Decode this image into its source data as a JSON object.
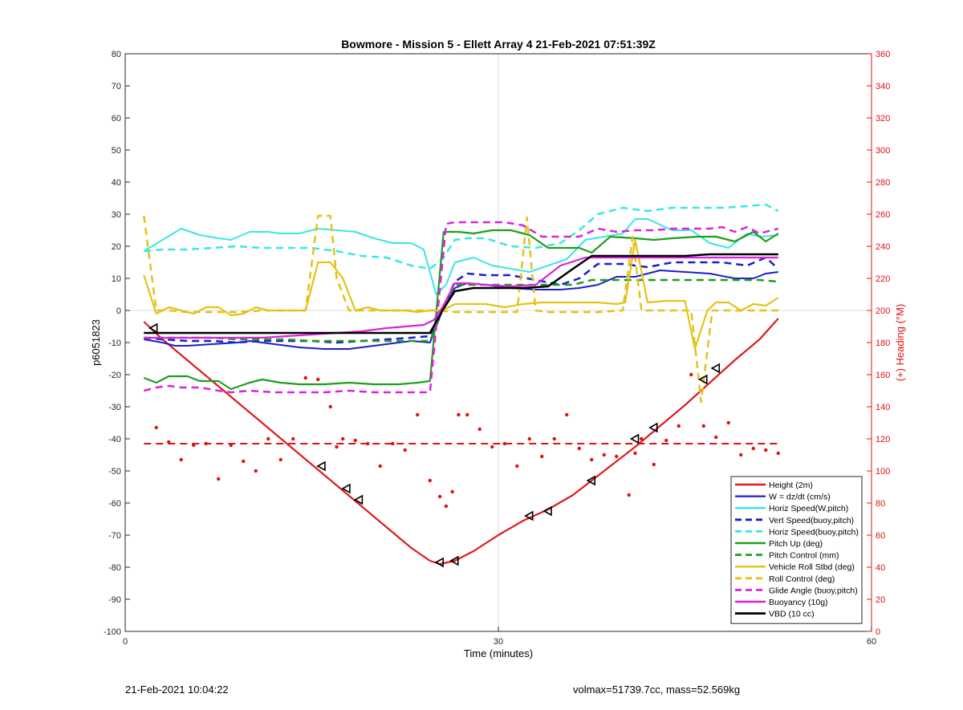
{
  "footer": {
    "date": "21-Feb-2021 10:04:22",
    "info": "volmax=51739.7cc, mass=52.569kg"
  },
  "colors": {
    "height": "#dd1c1c",
    "w": "#1a1fc8",
    "horiz": "#3ae6e6",
    "pitch": "#1e9e1e",
    "roll": "#e3c319",
    "glide": "#e020e0",
    "vbd": "#000000",
    "heading": "#e01010"
  },
  "chart_data": {
    "type": "line",
    "title": "Bowmore - Mission 5 - Ellett Array 4 21-Feb-2021 07:51:39Z",
    "xlabel": "Time (minutes)",
    "ylabel": "p6051823",
    "y2label": "(+) Heading (°M)",
    "xlim": [
      0,
      60
    ],
    "ylim": [
      -100,
      80
    ],
    "y2lim": [
      0,
      360
    ],
    "xticks": [
      0,
      30,
      60
    ],
    "yticks": [
      -100,
      -90,
      -80,
      -70,
      -60,
      -50,
      -40,
      -30,
      -20,
      -10,
      0,
      10,
      20,
      30,
      40,
      50,
      60,
      70,
      80
    ],
    "y2ticks": [
      0,
      20,
      40,
      60,
      80,
      100,
      120,
      140,
      160,
      180,
      200,
      220,
      240,
      260,
      280,
      300,
      320,
      340,
      360
    ],
    "grid_x": [
      30
    ],
    "grid_y": [
      0
    ],
    "legend_position": "bottom-right",
    "series": [
      {
        "name": "Height (2m)",
        "key": "height",
        "style": "solid",
        "width": 2.2,
        "x": [
          1.5,
          3,
          5,
          7,
          9,
          11,
          13,
          15,
          17,
          19,
          21,
          23,
          24.5,
          25.3,
          26.5,
          28,
          30,
          32,
          34,
          36,
          37.5,
          39,
          41,
          43,
          45,
          47,
          49,
          51,
          52.5
        ],
        "y": [
          -3.5,
          -9,
          -15.5,
          -22,
          -28.5,
          -35,
          -41.5,
          -48,
          -54.5,
          -61,
          -67.5,
          -74,
          -78,
          -79,
          -78,
          -75,
          -70,
          -65.5,
          -62,
          -57.5,
          -53,
          -48.5,
          -42.5,
          -36,
          -29.5,
          -22.5,
          -15.5,
          -9,
          -2.5
        ]
      },
      {
        "name": "W = dz/dt (cm/s)",
        "key": "w",
        "style": "solid",
        "width": 2,
        "x": [
          1.5,
          3,
          4,
          5,
          7,
          9,
          10,
          12,
          14,
          16,
          18,
          20,
          22,
          23,
          24.5,
          25.5,
          26.5,
          27.5,
          29,
          31,
          33,
          35,
          36.5,
          38,
          39.5,
          41,
          43,
          45,
          47,
          49,
          50.5,
          51.5,
          52.5
        ],
        "y": [
          -9,
          -10,
          -11,
          -11,
          -10.5,
          -10,
          -9.5,
          -10.5,
          -11.5,
          -12,
          -12,
          -11,
          -10,
          -9.5,
          -10,
          0,
          7,
          8.5,
          8,
          7,
          6.5,
          6.5,
          7,
          8,
          10.5,
          10.5,
          12.5,
          12,
          11.5,
          10,
          10,
          11.5,
          12
        ]
      },
      {
        "name": "Horiz Speed(W,pitch)",
        "key": "horiz",
        "style": "solid",
        "width": 2,
        "x": [
          1.5,
          3,
          4.5,
          6,
          7.5,
          8.5,
          10,
          11.5,
          12.5,
          14,
          15.5,
          17,
          18.5,
          20,
          21.5,
          23,
          24,
          25,
          25.8,
          26.5,
          28,
          29.5,
          31,
          32.5,
          34,
          35.5,
          37,
          38.5,
          40,
          41,
          42,
          44,
          45.5,
          47,
          48.5,
          50,
          51,
          52.5
        ],
        "y": [
          18.5,
          22,
          25.5,
          23.5,
          22.5,
          22,
          24.5,
          24.5,
          24,
          24,
          25.5,
          25,
          24.5,
          22.5,
          21,
          21,
          19,
          5,
          8,
          15,
          16.5,
          14,
          13,
          12,
          14,
          16,
          22,
          23,
          24,
          28.5,
          28.5,
          25,
          25,
          21,
          19.5,
          24,
          23,
          23.5
        ]
      },
      {
        "name": "Vert Speed(buoy,pitch)",
        "key": "w",
        "style": "dashed",
        "width": 2.5,
        "x": [
          1.5,
          3,
          5,
          7,
          9,
          11,
          13,
          15,
          17,
          19,
          21,
          23,
          24.5,
          25.5,
          26.5,
          27.5,
          29,
          31,
          33,
          35,
          36.5,
          38,
          40,
          42,
          44,
          46,
          48,
          50,
          51.5,
          52.5
        ],
        "y": [
          -8.5,
          -9,
          -9.5,
          -9.5,
          -10,
          -9.5,
          -9.5,
          -9.5,
          -10,
          -9.5,
          -9,
          -8.5,
          -8,
          0,
          9,
          11.5,
          11,
          11,
          9.5,
          8,
          10,
          14.5,
          14.5,
          13.5,
          15,
          15,
          15,
          14,
          16.5,
          13
        ]
      },
      {
        "name": "Horiz Speed(buoy,pitch)",
        "key": "horiz",
        "style": "dashed",
        "width": 2.5,
        "x": [
          1.5,
          3,
          5,
          7,
          9,
          11,
          13,
          15,
          17,
          19,
          21,
          23,
          24.5,
          25.5,
          26.5,
          27.5,
          29,
          31,
          33,
          35,
          36.5,
          38,
          40,
          42,
          44,
          46,
          48,
          50,
          51.5,
          52.5
        ],
        "y": [
          18.5,
          19,
          19,
          19.5,
          20,
          19.5,
          19.5,
          19.5,
          18.5,
          17,
          16.5,
          14,
          13,
          16,
          22,
          22.5,
          22.5,
          20,
          19.5,
          21,
          25,
          30,
          32,
          31,
          32,
          32,
          32,
          32.5,
          33,
          31
        ]
      },
      {
        "name": "Pitch Up (deg)",
        "key": "pitch",
        "style": "solid",
        "width": 2.2,
        "x": [
          1.5,
          2.5,
          3.5,
          5,
          6,
          7.5,
          8.5,
          10,
          11,
          12.5,
          14,
          16,
          18,
          20,
          22,
          23.5,
          24.5,
          25.6,
          26.8,
          28,
          29.5,
          31,
          32.5,
          34,
          35.5,
          36.5,
          37.5,
          39,
          41,
          42.5,
          44,
          46,
          47.5,
          49,
          50.5,
          51.5,
          52.5
        ],
        "y": [
          -21,
          -22.5,
          -20.5,
          -20.5,
          -22,
          -22,
          -24.5,
          -22.5,
          -21.5,
          -22.5,
          -23,
          -23,
          -22.5,
          -23,
          -23,
          -22.5,
          -22,
          24.5,
          24.5,
          24,
          25,
          25,
          23.5,
          19.5,
          19.5,
          19.5,
          18,
          23,
          22.5,
          22,
          22.5,
          23,
          23,
          21.5,
          24.5,
          21.5,
          24
        ]
      },
      {
        "name": "Pitch Control (mm)",
        "key": "pitch",
        "style": "dashed",
        "width": 2.5,
        "x": [
          1.5,
          3,
          5,
          7,
          9,
          11,
          13,
          15,
          17,
          19,
          21,
          23,
          24.5,
          25.5,
          26.5,
          28,
          30,
          32,
          34,
          36,
          37.5,
          39,
          41,
          43,
          45,
          47,
          49,
          51,
          52.5
        ],
        "y": [
          -8.5,
          -8.5,
          -8.5,
          -8.5,
          -9,
          -9,
          -9,
          -9.5,
          -9.5,
          -9.5,
          -9.5,
          -9.5,
          -9.5,
          0,
          8,
          8,
          8,
          8,
          8,
          8,
          9.5,
          9.5,
          9.5,
          9.5,
          9.5,
          9.5,
          9.5,
          9.5,
          9
        ]
      },
      {
        "name": "Vehicle Roll Stbd (deg)",
        "key": "roll",
        "style": "solid",
        "width": 2.2,
        "x": [
          1.5,
          2.5,
          3.5,
          4.5,
          5.5,
          6.5,
          7.5,
          8.5,
          9.5,
          10.5,
          11.5,
          12.5,
          13.5,
          14.5,
          15.5,
          16.5,
          17.5,
          18.5,
          19.5,
          20.5,
          21.5,
          22.5,
          23.5,
          24.5,
          25.5,
          26.5,
          27.5,
          29,
          30.5,
          32,
          33.5,
          35,
          36.5,
          38,
          39.5,
          40.2,
          41,
          42,
          43.5,
          45,
          45.8,
          46.8,
          47.5,
          48.5,
          49.5,
          50.5,
          51.5,
          52.5
        ],
        "y": [
          11,
          -1,
          1,
          0,
          -1,
          1,
          1,
          -1.5,
          -1,
          1,
          0,
          0,
          0,
          0,
          15,
          15,
          10,
          0,
          1,
          0,
          0,
          0,
          -0.5,
          0,
          0,
          2,
          2,
          2,
          1,
          2,
          2.5,
          2.5,
          2.5,
          2.5,
          2,
          2.5,
          22,
          2.5,
          3,
          3,
          -12,
          0,
          2.5,
          2.5,
          0,
          2,
          1.5,
          4
        ]
      },
      {
        "name": "Roll Control (deg)",
        "key": "roll",
        "style": "dashed",
        "width": 2.5,
        "x": [
          1.5,
          2.5,
          3.5,
          5,
          7,
          9,
          11,
          13,
          14.5,
          15.5,
          16.5,
          17,
          18,
          19,
          21,
          23,
          24.5,
          25.2,
          26.5,
          28,
          30,
          31.5,
          32.3,
          33,
          34,
          36,
          38,
          40,
          40.8,
          41.5,
          42,
          44,
          45.5,
          46.3,
          47.2,
          48,
          50,
          52.5
        ],
        "y": [
          29.5,
          0,
          0,
          -0.5,
          -0.5,
          -0.5,
          0,
          0,
          0,
          29.5,
          29.5,
          10,
          0,
          0,
          0,
          0,
          0,
          0,
          -0.5,
          -0.5,
          -0.5,
          -0.5,
          29,
          0,
          -0.5,
          -0.5,
          -0.5,
          0,
          23,
          0,
          0,
          0,
          0,
          -28.5,
          0,
          0,
          0,
          0
        ]
      },
      {
        "name": "Glide Angle (buoy,pitch)",
        "key": "glide",
        "style": "dashed",
        "width": 2.5,
        "x": [
          1.5,
          2.5,
          3.5,
          4.5,
          6,
          7.5,
          8.5,
          10,
          12,
          14,
          16,
          18,
          20,
          22,
          23.5,
          24.5,
          25.8,
          26.5,
          27.5,
          29,
          30.5,
          32,
          33.5,
          35,
          36.5,
          38,
          39.5,
          41,
          42.5,
          44,
          46,
          47,
          48,
          49,
          50,
          51,
          52.5
        ],
        "y": [
          -25,
          -24,
          -23.5,
          -24,
          -24,
          -25,
          -25.5,
          -25,
          -25.5,
          -25.5,
          -25.5,
          -25,
          -25.5,
          -25.5,
          -25.5,
          -25.5,
          27,
          27.5,
          27.5,
          27.5,
          27.5,
          26.5,
          23,
          23,
          23,
          25.5,
          24.5,
          25,
          25,
          25.5,
          25.5,
          25.5,
          26,
          24.5,
          26,
          24,
          25.5
        ]
      },
      {
        "name": "Buoyancy (10g)",
        "key": "glide",
        "style": "solid",
        "width": 2.2,
        "x": [
          1.5,
          3,
          5,
          7,
          9,
          11,
          13,
          15,
          17,
          19,
          21,
          22.5,
          24,
          24.8,
          25.5,
          26.5,
          27.5,
          29,
          31,
          33,
          35,
          37,
          38,
          40,
          42,
          44,
          46,
          48,
          50,
          52.5
        ],
        "y": [
          -8.5,
          -8.5,
          -8.5,
          -8.5,
          -8.5,
          -8.5,
          -8,
          -7.5,
          -7,
          -6.5,
          -5.5,
          -5,
          -4.5,
          -3,
          1,
          8.5,
          8.5,
          8,
          7.5,
          8,
          14,
          16.5,
          16.5,
          16.5,
          16.5,
          16.5,
          16.5,
          16.5,
          16.5,
          16.5
        ]
      },
      {
        "name": "VBD (10 cc)",
        "key": "vbd",
        "style": "solid",
        "width": 2.5,
        "x": [
          1.5,
          3,
          5,
          7,
          9,
          11,
          13,
          15,
          17,
          19,
          21,
          23,
          24.5,
          25.5,
          26.5,
          28,
          30,
          32,
          34,
          36,
          37.5,
          39,
          41,
          43,
          45,
          47,
          49,
          51,
          52.5
        ],
        "y": [
          -7,
          -7,
          -7,
          -7,
          -7,
          -7,
          -7,
          -7,
          -7,
          -7,
          -7,
          -7,
          -7,
          0,
          6,
          7,
          7,
          7,
          7.5,
          13,
          17,
          17,
          17,
          17,
          17,
          17.5,
          17.5,
          17.5,
          17.5
        ]
      }
    ],
    "heading_ref": {
      "y2": 117,
      "style": "dashed"
    },
    "heading_points": {
      "x": [
        2.5,
        3.5,
        4.5,
        5.5,
        6.5,
        7.5,
        8.5,
        9.5,
        10.5,
        11.5,
        12.5,
        13.5,
        14.5,
        15.5,
        16.5,
        17,
        17.5,
        18.5,
        19.5,
        20.5,
        21.5,
        22.5,
        23.5,
        24.5,
        25.3,
        25.8,
        26.3,
        26.8,
        27.5,
        28.5,
        29.5,
        30.5,
        31.5,
        32.5,
        33.5,
        34.5,
        35.5,
        36.5,
        37.5,
        38.5,
        39.5,
        40.5,
        41,
        41.5,
        42.5,
        43.5,
        44.5,
        45.5,
        46.5,
        47.5,
        48.5,
        49.5,
        50.5,
        51.5,
        52.5
      ],
      "y2": [
        127,
        118,
        107,
        116,
        117,
        95,
        116,
        106,
        100,
        120,
        107,
        120,
        158,
        157,
        140,
        115,
        120,
        119,
        117,
        103,
        117,
        113,
        135,
        94,
        84,
        78,
        87,
        135,
        135,
        126,
        115,
        117,
        103,
        120,
        109,
        120,
        135,
        114,
        107,
        110,
        109,
        85,
        111,
        120,
        104,
        119,
        128,
        160,
        128,
        121,
        130,
        110,
        114,
        113,
        111
      ]
    },
    "markers": {
      "x": [
        2.3,
        15.8,
        17.8,
        18.8,
        25.3,
        26.5,
        32.5,
        34,
        37.5,
        41,
        42.5,
        46.5,
        47.5
      ],
      "y": [
        -5.5,
        -48.5,
        -55.5,
        -59,
        -78.5,
        -78,
        -64,
        -62.5,
        -53,
        -40,
        -36.5,
        -21.5,
        -18
      ]
    }
  }
}
